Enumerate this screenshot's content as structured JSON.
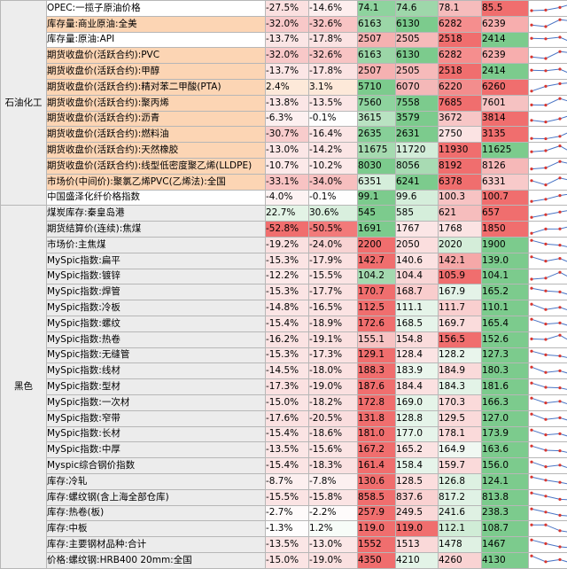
{
  "categories": [
    {
      "label": "石油化工",
      "rows": 10
    },
    {
      "label": "黑色",
      "rows": 21
    }
  ],
  "rows": [
    {
      "name": "OPEC:一揽子原油价格",
      "hl": false,
      "pct1": "-27.5%",
      "pct2": "-14.6%",
      "vals": [
        "74.1",
        "74.6",
        "78.1",
        "85.5"
      ],
      "colors": [
        "#8ed39e",
        "#9ed7aa",
        "#f6bcbc",
        "#f06e6e"
      ],
      "p1c": "#fbe0e0",
      "p2c": "#fdeeee",
      "spark": [
        0.25,
        0.3,
        0.55,
        0.95
      ]
    },
    {
      "name": "库存量:商业原油:全美",
      "hl": true,
      "pct1": "-32.0%",
      "pct2": "-32.6%",
      "vals": [
        "6163",
        "6130",
        "6282",
        "6239"
      ],
      "colors": [
        "#9bd6a7",
        "#7ccb8d",
        "#f58e8e",
        "#f7aeae"
      ],
      "p1c": "#f8c8c8",
      "p2c": "#f8c4c4",
      "spark": [
        0.4,
        0.25,
        0.9,
        0.75
      ]
    },
    {
      "name": "库存量:原油:API",
      "hl": false,
      "pct1": "-13.7%",
      "pct2": "-17.8%",
      "vals": [
        "2507",
        "2505",
        "2518",
        "2414"
      ],
      "colors": [
        "#f5b1b1",
        "#f6baba",
        "#f06e6e",
        "#7ccb8d"
      ],
      "p1c": "#fbe6e6",
      "p2c": "#fbe3e3",
      "spark": [
        0.65,
        0.6,
        0.75,
        0.15
      ]
    },
    {
      "name": "期货收盘价(活跃合约):PVC",
      "hl": true,
      "pct1": "-32.0%",
      "pct2": "-32.6%",
      "vals": [
        "6163",
        "6130",
        "6282",
        "6239"
      ],
      "colors": [
        "#9bd6a7",
        "#7ccb8d",
        "#f58e8e",
        "#f7aeae"
      ],
      "p1c": "#f8c8c8",
      "p2c": "#f8c4c4",
      "spark": [
        0.4,
        0.25,
        0.9,
        0.75
      ]
    },
    {
      "name": "期货收盘价(活跃合约):甲醇",
      "hl": true,
      "pct1": "-13.7%",
      "pct2": "-17.8%",
      "vals": [
        "2507",
        "2505",
        "2518",
        "2414"
      ],
      "colors": [
        "#f5b1b1",
        "#f6baba",
        "#f06e6e",
        "#7ccb8d"
      ],
      "p1c": "#fbe6e6",
      "p2c": "#fbe3e3",
      "spark": [
        0.65,
        0.6,
        0.75,
        0.15
      ]
    },
    {
      "name": "期货收盘价(活跃合约):精对苯二甲酸(PTA)",
      "hl": true,
      "pct1": "2.4%",
      "pct2": "3.1%",
      "vals": [
        "5710",
        "6070",
        "6220",
        "6260"
      ],
      "colors": [
        "#7ccb8d",
        "#f4b8b8",
        "#f38d8d",
        "#f06e6e"
      ],
      "p1c": "#fde9d9",
      "p2c": "#fde9d9",
      "spark": [
        0.1,
        0.55,
        0.8,
        0.9
      ]
    },
    {
      "name": "期货收盘价(活跃合约):聚丙烯",
      "hl": true,
      "pct1": "-13.8%",
      "pct2": "-13.5%",
      "vals": [
        "7560",
        "7558",
        "7685",
        "7601"
      ],
      "colors": [
        "#8ed39e",
        "#7ccb8d",
        "#f06e6e",
        "#f6c2c2"
      ],
      "p1c": "#fbe6e6",
      "p2c": "#fbe6e6",
      "spark": [
        0.3,
        0.28,
        0.9,
        0.5
      ]
    },
    {
      "name": "期货收盘价(活跃合约):沥青",
      "hl": true,
      "pct1": "-6.3%",
      "pct2": "-0.1%",
      "vals": [
        "3615",
        "3579",
        "3672",
        "3814"
      ],
      "colors": [
        "#b9e2c2",
        "#7ccb8d",
        "#f7c6c6",
        "#f06e6e"
      ],
      "p1c": "#fdf0f0",
      "p2c": "#fefefe",
      "spark": [
        0.35,
        0.2,
        0.5,
        0.95
      ]
    },
    {
      "name": "期货收盘价(活跃合约):燃料油",
      "hl": true,
      "pct1": "-30.7%",
      "pct2": "-16.4%",
      "vals": [
        "2635",
        "2631",
        "2750",
        "3135"
      ],
      "colors": [
        "#87cf98",
        "#7ccb8d",
        "#fbe3e3",
        "#f06e6e"
      ],
      "p1c": "#f8cccc",
      "p2c": "#fbe5e5",
      "spark": [
        0.15,
        0.12,
        0.35,
        0.95
      ]
    },
    {
      "name": "期货收盘价(活跃合约):天然橡胶",
      "hl": true,
      "pct1": "-13.0%",
      "pct2": "-14.2%",
      "vals": [
        "11675",
        "11720",
        "11930",
        "11625"
      ],
      "colors": [
        "#a5dab0",
        "#d3edd9",
        "#f06e6e",
        "#7ccb8d"
      ],
      "p1c": "#fbe6e6",
      "p2c": "#fbe5e5",
      "spark": [
        0.4,
        0.5,
        0.95,
        0.2
      ]
    }
  ],
  "rows2": [
    {
      "name": "期货收盘价(活跃合约):线型低密度聚乙烯(LLDPE)",
      "hl": true,
      "pct1": "-10.7%",
      "pct2": "-10.2%",
      "vals": [
        "8030",
        "8056",
        "8192",
        "8126"
      ],
      "colors": [
        "#7ccb8d",
        "#a8dbb3",
        "#f06e6e",
        "#f6b8b8"
      ],
      "p1c": "#fce9e9",
      "p2c": "#fce9e9",
      "spark": [
        0.2,
        0.3,
        0.9,
        0.6
      ]
    },
    {
      "name": "市场价(中间价):聚氯乙烯PVC(乙烯法):全国",
      "hl": true,
      "pct1": "-33.1%",
      "pct2": "-34.0%",
      "vals": [
        "6351",
        "6241",
        "6378",
        "6331"
      ],
      "colors": [
        "#d5eedb",
        "#7ccb8d",
        "#f06e6e",
        "#f8caca"
      ],
      "p1c": "#f8c3c3",
      "p2c": "#f7bfbf",
      "spark": [
        0.6,
        0.2,
        0.85,
        0.55
      ]
    },
    {
      "name": "中国盛泽化纤价格指数",
      "hl": false,
      "pct1": "-4.0%",
      "pct2": "-0.1%",
      "vals": [
        "99.1",
        "99.6",
        "100.3",
        "100.7"
      ],
      "colors": [
        "#7ccb8d",
        "#d5eedb",
        "#f7c3c3",
        "#f06e6e"
      ],
      "p1c": "#fdf3f3",
      "p2c": "#fefefe",
      "spark": [
        0.15,
        0.35,
        0.7,
        0.9
      ]
    }
  ],
  "rows3": [
    {
      "name": "煤炭库存:秦皇岛港",
      "hl": false,
      "pct1": "22.7%",
      "pct2": "30.6%",
      "vals": [
        "545",
        "585",
        "621",
        "657"
      ],
      "colors": [
        "#7ccb8d",
        "#d5eedb",
        "#f6bdbd",
        "#f06e6e"
      ],
      "p1c": "#e3f3e6",
      "p2c": "#d9efde",
      "spark": [
        0.15,
        0.4,
        0.65,
        0.9
      ]
    },
    {
      "name": "期货结算价(连续):焦煤",
      "hl": false,
      "pct1": "-52.8%",
      "pct2": "-50.5%",
      "vals": [
        "1691",
        "1767",
        "1768",
        "1850"
      ],
      "colors": [
        "#7ccb8d",
        "#fbe6e6",
        "#fbe3e3",
        "#f06e6e"
      ],
      "p1c": "#f06e6e",
      "p2c": "#f27a7a",
      "spark": [
        0.15,
        0.55,
        0.56,
        0.9
      ]
    },
    {
      "name": "市场价:主焦煤",
      "hl": false,
      "pct1": "-19.2%",
      "pct2": "-24.0%",
      "vals": [
        "2200",
        "2050",
        "2020",
        "1900"
      ],
      "colors": [
        "#f06e6e",
        "#fbdede",
        "#d4edd9",
        "#7ccb8d"
      ],
      "p1c": "#fae0e0",
      "p2c": "#f8d3d3",
      "spark": [
        0.9,
        0.55,
        0.45,
        0.15
      ]
    },
    {
      "name": "MySpic指数:扁平",
      "hl": false,
      "pct1": "-15.3%",
      "pct2": "-17.9%",
      "vals": [
        "142.7",
        "140.6",
        "142.1",
        "139.0"
      ],
      "colors": [
        "#f06e6e",
        "#fbe2e2",
        "#f5a8a8",
        "#7ccb8d"
      ],
      "p1c": "#fbe4e4",
      "p2c": "#fbe1e1",
      "spark": [
        0.85,
        0.45,
        0.7,
        0.15
      ]
    },
    {
      "name": "MySpic指数:镀锌",
      "hl": false,
      "pct1": "-12.2%",
      "pct2": "-15.5%",
      "vals": [
        "104.2",
        "104.4",
        "105.9",
        "104.1"
      ],
      "colors": [
        "#a4d9af",
        "#f9d6d6",
        "#f06e6e",
        "#7ccb8d"
      ],
      "p1c": "#fce9e9",
      "p2c": "#fbe4e4",
      "spark": [
        0.25,
        0.35,
        0.9,
        0.2
      ]
    },
    {
      "name": "MySpic指数:焊管",
      "hl": false,
      "pct1": "-15.3%",
      "pct2": "-17.7%",
      "vals": [
        "170.7",
        "168.7",
        "167.9",
        "165.2"
      ],
      "colors": [
        "#f06e6e",
        "#f9cdcd",
        "#e4f3e8",
        "#7ccb8d"
      ],
      "p1c": "#fbe4e4",
      "p2c": "#fbe1e1",
      "spark": [
        0.9,
        0.65,
        0.55,
        0.15
      ]
    },
    {
      "name": "MySpic指数:冷板",
      "hl": false,
      "pct1": "-14.8%",
      "pct2": "-16.5%",
      "vals": [
        "112.5",
        "111.1",
        "111.7",
        "110.1"
      ],
      "colors": [
        "#f06e6e",
        "#e5f4e9",
        "#f9cfcf",
        "#7ccb8d"
      ],
      "p1c": "#fbe5e5",
      "p2c": "#fbe3e3",
      "spark": [
        0.9,
        0.4,
        0.6,
        0.15
      ]
    },
    {
      "name": "MySpic指数:螺纹",
      "hl": false,
      "pct1": "-15.4%",
      "pct2": "-18.9%",
      "vals": [
        "172.6",
        "168.5",
        "169.7",
        "165.4"
      ],
      "colors": [
        "#f06e6e",
        "#e6f4ea",
        "#fadcdc",
        "#7ccb8d"
      ],
      "p1c": "#fbe4e4",
      "p2c": "#fae0e0",
      "spark": [
        0.9,
        0.45,
        0.55,
        0.15
      ]
    },
    {
      "name": "MySpic指数:热卷",
      "hl": false,
      "pct1": "-16.2%",
      "pct2": "-19.1%",
      "vals": [
        "155.1",
        "154.8",
        "156.5",
        "152.6"
      ],
      "colors": [
        "#f7c3c3",
        "#fadcdc",
        "#f06e6e",
        "#7ccb8d"
      ],
      "p1c": "#fbe3e3",
      "p2c": "#fae0e0",
      "spark": [
        0.55,
        0.5,
        0.9,
        0.15
      ]
    },
    {
      "name": "MySpic指数:无缝管",
      "hl": false,
      "pct1": "-15.3%",
      "pct2": "-17.3%",
      "vals": [
        "129.1",
        "128.4",
        "128.2",
        "127.3"
      ],
      "colors": [
        "#f06e6e",
        "#fbe4e4",
        "#e9f5ec",
        "#7ccb8d"
      ],
      "p1c": "#fbe4e4",
      "p2c": "#fbe2e2",
      "spark": [
        0.9,
        0.55,
        0.45,
        0.15
      ]
    },
    {
      "name": "MySpic指数:线材",
      "hl": false,
      "pct1": "-14.5%",
      "pct2": "-18.0%",
      "vals": [
        "188.3",
        "183.9",
        "184.9",
        "180.3"
      ],
      "colors": [
        "#f06e6e",
        "#eaf6ed",
        "#fadada",
        "#7ccb8d"
      ],
      "p1c": "#fbe5e5",
      "p2c": "#fbe1e1",
      "spark": [
        0.9,
        0.4,
        0.55,
        0.15
      ]
    },
    {
      "name": "MySpic指数:型材",
      "hl": false,
      "pct1": "-17.3%",
      "pct2": "-19.0%",
      "vals": [
        "187.6",
        "184.4",
        "184.3",
        "181.6"
      ],
      "colors": [
        "#f06e6e",
        "#fbe1e1",
        "#e3f3e7",
        "#7ccb8d"
      ],
      "p1c": "#fbe1e1",
      "p2c": "#fae0e0",
      "spark": [
        0.9,
        0.5,
        0.45,
        0.15
      ]
    },
    {
      "name": "MySpic指数:一次材",
      "hl": false,
      "pct1": "-15.0%",
      "pct2": "-18.2%",
      "vals": [
        "172.8",
        "169.0",
        "170.3",
        "166.3"
      ],
      "colors": [
        "#f06e6e",
        "#e5f4e9",
        "#fadada",
        "#7ccb8d"
      ],
      "p1c": "#fbe4e4",
      "p2c": "#fae1e1",
      "spark": [
        0.9,
        0.45,
        0.6,
        0.15
      ]
    },
    {
      "name": "MySpic指数:窄带",
      "hl": false,
      "pct1": "-17.6%",
      "pct2": "-20.5%",
      "vals": [
        "131.8",
        "128.8",
        "129.5",
        "127.0"
      ],
      "colors": [
        "#f06e6e",
        "#e5f4e9",
        "#fadada",
        "#7ccb8d"
      ],
      "p1c": "#fbe1e1",
      "p2c": "#faddde",
      "spark": [
        0.9,
        0.4,
        0.55,
        0.15
      ]
    },
    {
      "name": "MySpic指数:长材",
      "hl": false,
      "pct1": "-15.4%",
      "pct2": "-18.6%",
      "vals": [
        "181.0",
        "177.0",
        "178.1",
        "173.9"
      ],
      "colors": [
        "#f06e6e",
        "#e6f4ea",
        "#fadada",
        "#7ccb8d"
      ],
      "p1c": "#fbe4e4",
      "p2c": "#fae0e0",
      "spark": [
        0.9,
        0.45,
        0.55,
        0.15
      ]
    },
    {
      "name": "MySpic指数:中厚",
      "hl": false,
      "pct1": "-13.5%",
      "pct2": "-15.6%",
      "vals": [
        "167.2",
        "165.2",
        "164.9",
        "163.6"
      ],
      "colors": [
        "#f06e6e",
        "#fbe3e3",
        "#f0f8f2",
        "#7ccb8d"
      ],
      "p1c": "#fbe6e6",
      "p2c": "#fbe4e4",
      "spark": [
        0.9,
        0.5,
        0.45,
        0.15
      ]
    },
    {
      "name": "Myspic综合钢价指数",
      "hl": false,
      "pct1": "-15.4%",
      "pct2": "-18.3%",
      "vals": [
        "161.4",
        "158.4",
        "159.7",
        "156.0"
      ],
      "colors": [
        "#f06e6e",
        "#e6f4ea",
        "#fadada",
        "#7ccb8d"
      ],
      "p1c": "#fbe4e4",
      "p2c": "#fae1e1",
      "spark": [
        0.9,
        0.45,
        0.6,
        0.15
      ]
    },
    {
      "name": "库存:冷轧",
      "hl": false,
      "pct1": "-8.7%",
      "pct2": "-7.8%",
      "vals": [
        "130.6",
        "128.5",
        "126.8",
        "124.1"
      ],
      "colors": [
        "#f06e6e",
        "#fbdede",
        "#ddf1e2",
        "#7ccb8d"
      ],
      "p1c": "#fcefef",
      "p2c": "#fcf0f0",
      "spark": [
        0.9,
        0.6,
        0.4,
        0.15
      ]
    },
    {
      "name": "库存:螺纹钢(含上海全部仓库)",
      "hl": false,
      "pct1": "-15.5%",
      "pct2": "-15.8%",
      "vals": [
        "858.5",
        "837.6",
        "817.2",
        "813.8"
      ],
      "colors": [
        "#f06e6e",
        "#f9d1d1",
        "#e0f2e5",
        "#7ccb8d"
      ],
      "p1c": "#fbe4e4",
      "p2c": "#fbe4e4",
      "spark": [
        0.9,
        0.6,
        0.3,
        0.25
      ]
    },
    {
      "name": "库存:热卷(板)",
      "hl": false,
      "pct1": "-2.7%",
      "pct2": "-2.2%",
      "vals": [
        "257.9",
        "249.5",
        "241.6",
        "238.3"
      ],
      "colors": [
        "#f06e6e",
        "#fad8d8",
        "#dff1e3",
        "#7ccb8d"
      ],
      "p1c": "#fefafa",
      "p2c": "#fefbfb",
      "spark": [
        0.9,
        0.6,
        0.3,
        0.2
      ]
    },
    {
      "name": "库存:中板",
      "hl": false,
      "pct1": "-1.3%",
      "pct2": "1.2%",
      "vals": [
        "119.0",
        "119.0",
        "112.1",
        "108.7"
      ],
      "colors": [
        "#f06e6e",
        "#f06e6e",
        "#d0ecd6",
        "#7ccb8d"
      ],
      "p1c": "#fefdfd",
      "p2c": "#f7fcf8",
      "spark": [
        0.9,
        0.9,
        0.35,
        0.15
      ]
    }
  ],
  "rows4": [
    {
      "name": "库存:主要钢材品种:合计",
      "hl": false,
      "pct1": "-13.5%",
      "pct2": "-13.0%",
      "vals": [
        "1552",
        "1513",
        "1478",
        "1467"
      ],
      "colors": [
        "#f06e6e",
        "#fad9d9",
        "#dff1e3",
        "#7ccb8d"
      ],
      "p1c": "#fbe6e6",
      "p2c": "#fbe7e7",
      "spark": [
        0.9,
        0.55,
        0.25,
        0.15
      ]
    },
    {
      "name": "价格:螺纹钢:HRB400 20mm:全国",
      "hl": false,
      "pct1": "-15.0%",
      "pct2": "-19.0%",
      "vals": [
        "4350",
        "4210",
        "4260",
        "4130"
      ],
      "colors": [
        "#f06e6e",
        "#e3f3e7",
        "#f9d3d3",
        "#7ccb8d"
      ],
      "p1c": "#fbe4e4",
      "p2c": "#fae0e0",
      "spark": [
        0.9,
        0.35,
        0.55,
        0.15
      ]
    }
  ]
}
